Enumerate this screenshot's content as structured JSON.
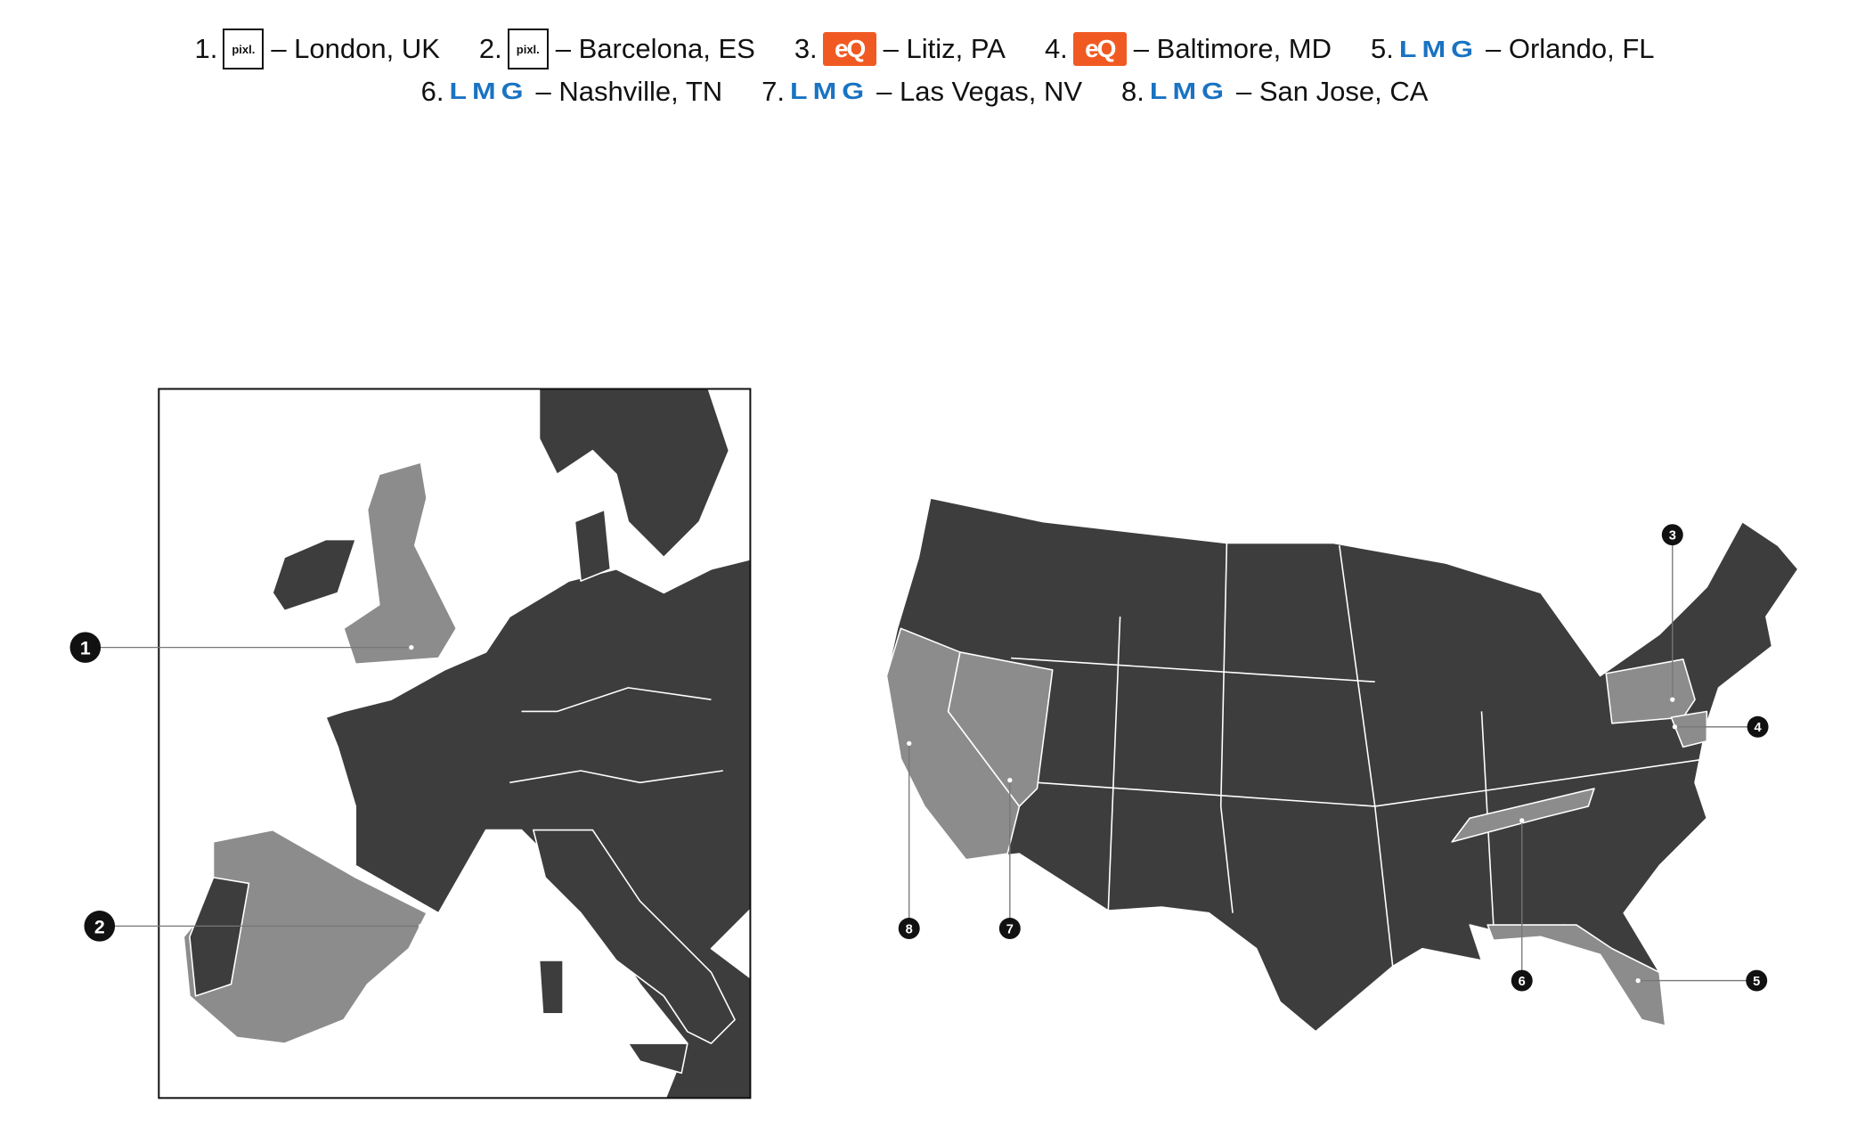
{
  "legend": [
    {
      "number": "1.",
      "logo": "pixl.",
      "logo_type": "pixl",
      "city": "– London, UK"
    },
    {
      "number": "2.",
      "logo": "pixl.",
      "logo_type": "pixl",
      "city": "– Barcelona, ES"
    },
    {
      "number": "3.",
      "logo": "eQ",
      "logo_type": "eq",
      "city": "– Litiz, PA"
    },
    {
      "number": "4.",
      "logo": "eQ",
      "logo_type": "eq",
      "city": "– Baltimore, MD"
    },
    {
      "number": "5.",
      "logo": "LMG",
      "logo_type": "lmg",
      "city": "– Orlando, FL"
    },
    {
      "number": "6.",
      "logo": "LMG",
      "logo_type": "lmg",
      "city": "– Nashville, TN"
    },
    {
      "number": "7.",
      "logo": "LMG",
      "logo_type": "lmg",
      "city": "– Las Vegas, NV"
    },
    {
      "number": "8.",
      "logo": "LMG",
      "logo_type": "lmg",
      "city": "– San Jose, CA"
    }
  ],
  "markers": {
    "m1": "1",
    "m2": "2",
    "m3": "3",
    "m4": "4",
    "m5": "5",
    "m6": "6",
    "m7": "7",
    "m8": "8"
  },
  "colors": {
    "land": "#3d3d3d",
    "highlight": "#8c8c8c",
    "eq_orange": "#f05a22",
    "lmg_blue": "#1a73c2",
    "marker": "#111111"
  }
}
